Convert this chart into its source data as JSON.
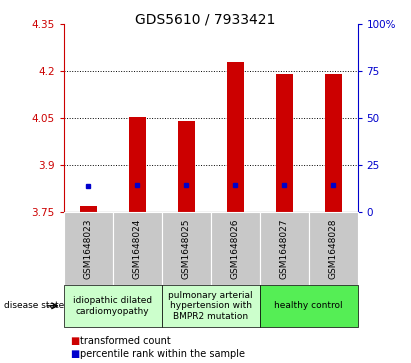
{
  "title": "GDS5610 / 7933421",
  "samples": [
    "GSM1648023",
    "GSM1648024",
    "GSM1648025",
    "GSM1648026",
    "GSM1648027",
    "GSM1648028"
  ],
  "red_values": [
    3.77,
    4.052,
    4.04,
    4.228,
    4.19,
    4.19
  ],
  "blue_values": [
    3.835,
    3.838,
    3.836,
    3.838,
    3.838,
    3.838
  ],
  "bar_base": 3.75,
  "ylim_left": [
    3.75,
    4.35
  ],
  "ylim_right": [
    0,
    100
  ],
  "yticks_left": [
    3.75,
    3.9,
    4.05,
    4.2,
    4.35
  ],
  "yticks_right": [
    0,
    25,
    50,
    75,
    100
  ],
  "ytick_labels_left": [
    "3.75",
    "3.9",
    "4.05",
    "4.2",
    "4.35"
  ],
  "ytick_labels_right": [
    "0",
    "25",
    "50",
    "75",
    "100%"
  ],
  "grid_values": [
    3.9,
    4.05,
    4.2
  ],
  "disease_groups": [
    {
      "label": "idiopathic dilated\ncardiomyopathy",
      "samples": [
        0,
        1
      ],
      "color": "#ccffcc"
    },
    {
      "label": "pulmonary arterial\nhypertension with\nBMPR2 mutation",
      "samples": [
        2,
        3
      ],
      "color": "#ccffcc"
    },
    {
      "label": "healthy control",
      "samples": [
        4,
        5
      ],
      "color": "#55ee55"
    }
  ],
  "bar_color_red": "#cc0000",
  "bar_color_blue": "#0000cc",
  "left_axis_color": "#cc0000",
  "right_axis_color": "#0000cc",
  "title_fontsize": 10,
  "tick_fontsize": 7.5,
  "sample_label_fontsize": 6.5,
  "disease_label_fontsize": 6.5,
  "legend_label_fontsize": 7,
  "legend_labels": [
    "transformed count",
    "percentile rank within the sample"
  ],
  "disease_state_label": "disease state",
  "bg_color": "#c8c8c8",
  "plot_bg_color": "#ffffff",
  "bar_width": 0.35
}
